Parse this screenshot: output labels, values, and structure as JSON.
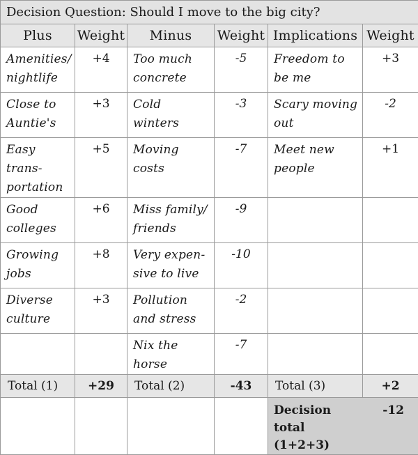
{
  "title": "Decision Question: Should I move to the big city?",
  "headers": [
    "Plus",
    "Weight",
    "Minus",
    "Weight",
    "Implications",
    "Weight"
  ],
  "rows": [
    {
      "plus": "Amenities/ nightlife",
      "plus_w": "+4",
      "minus": "Too much concrete",
      "minus_w": "-5",
      "impl": "Freedom to be me",
      "impl_w": "+3"
    },
    {
      "plus": "Close to Auntie's",
      "plus_w": "+3",
      "minus": "Cold winters",
      "minus_w": "-3",
      "impl": "Scary moving out",
      "impl_w": "-2"
    },
    {
      "plus": "Easy trans- portation",
      "plus_w": "+5",
      "minus": "Moving costs",
      "minus_w": "-7",
      "impl": "Meet new people",
      "impl_w": "+1"
    },
    {
      "plus": "Good colleges",
      "plus_w": "+6",
      "minus": "Miss family/ friends",
      "minus_w": "-9",
      "impl": "",
      "impl_w": ""
    },
    {
      "plus": "Growing jobs",
      "plus_w": "+8",
      "minus": "Very expen- sive to live",
      "minus_w": "-10",
      "impl": "",
      "impl_w": ""
    },
    {
      "plus": "Diverse culture",
      "plus_w": "+3",
      "minus": "Pollution and stress",
      "minus_w": "-2",
      "impl": "",
      "impl_w": ""
    },
    {
      "plus": "",
      "plus_w": "",
      "minus": "Nix the horse",
      "minus_w": "-7",
      "impl": "",
      "impl_w": ""
    }
  ],
  "totals": {
    "plus_label": "Total (1)",
    "plus_value": "+29",
    "minus_label": "Total (2)",
    "minus_value": "-43",
    "impl_label": "Total (3)",
    "impl_value": "+2"
  },
  "decision": {
    "label": "Decision total (1+2+3)",
    "value": "-12"
  }
}
